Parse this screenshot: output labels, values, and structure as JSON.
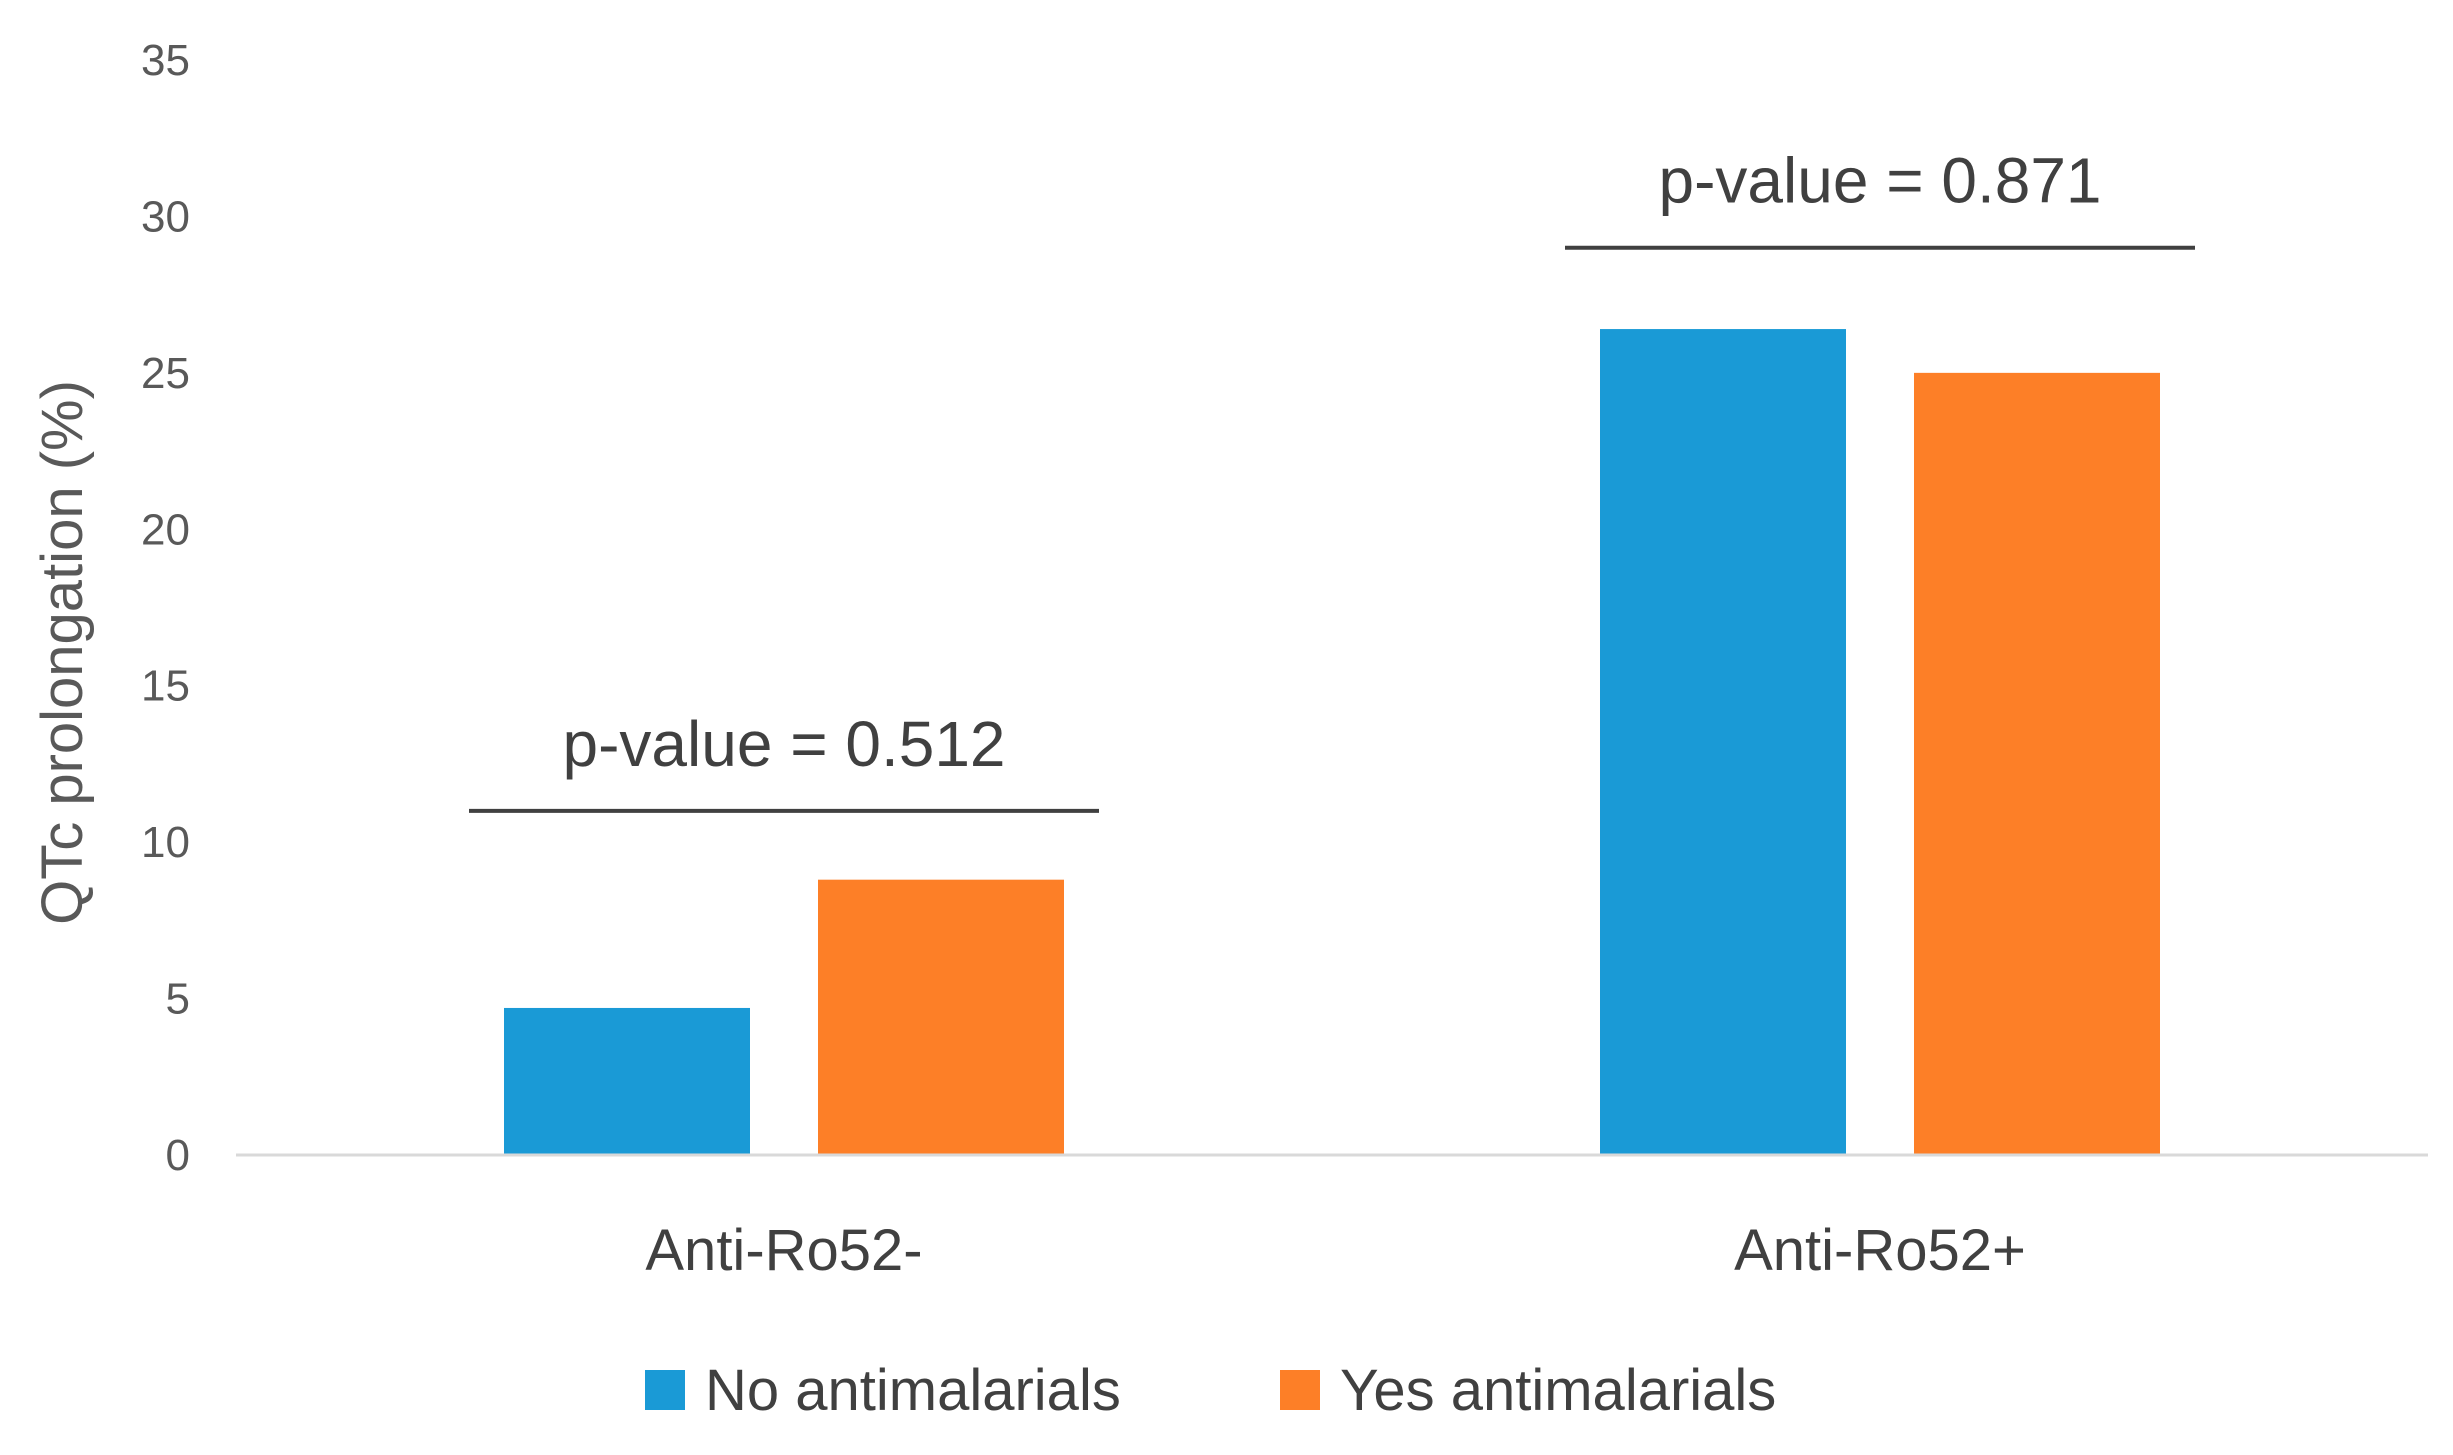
{
  "chart_data": {
    "type": "bar",
    "title": "",
    "xlabel": "",
    "ylabel": "QTc prolongation (%)",
    "ylim": [
      0,
      35
    ],
    "yticks": [
      0,
      5,
      10,
      15,
      20,
      25,
      30,
      35
    ],
    "grid": false,
    "legend_position": "bottom",
    "categories": [
      "Anti-Ro52-",
      "Anti-Ro52+"
    ],
    "series": [
      {
        "name": "No antimalarials",
        "color": "#1a9ad6",
        "values": [
          4.7,
          26.4
        ]
      },
      {
        "name": "Yes antimalarials",
        "color": "#fd7f27",
        "values": [
          8.8,
          25.0
        ]
      }
    ],
    "annotations": [
      {
        "category": "Anti-Ro52-",
        "text": "p-value = 0.512",
        "y": 11
      },
      {
        "category": "Anti-Ro52+",
        "text": "p-value = 0.871",
        "y": 29
      }
    ]
  }
}
